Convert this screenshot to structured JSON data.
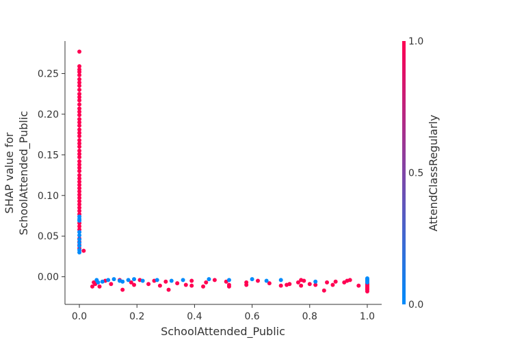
{
  "chart_data": {
    "type": "scatter",
    "title": "",
    "xlabel": "SchoolAttended_Public",
    "ylabel_lines": [
      "SHAP value for",
      "SchoolAttended_Public"
    ],
    "xlim": [
      -0.05,
      1.05
    ],
    "ylim": [
      -0.034,
      0.29
    ],
    "xticks": [
      0.0,
      0.2,
      0.4,
      0.6,
      0.8,
      1.0
    ],
    "xtick_labels": [
      "0.0",
      "0.2",
      "0.4",
      "0.6",
      "0.8",
      "1.0"
    ],
    "yticks": [
      0.0,
      0.05,
      0.1,
      0.15,
      0.2,
      0.25
    ],
    "ytick_labels": [
      "0.00",
      "0.05",
      "0.10",
      "0.15",
      "0.20",
      "0.25"
    ],
    "grid": false,
    "colorbar": {
      "label": "AttendClassRegularly",
      "range": [
        0.0,
        1.0
      ],
      "ticks": [
        0.0,
        0.5,
        1.0
      ],
      "tick_labels": [
        "0.0",
        "0.5",
        "1.0"
      ],
      "low_color": "#008bfb",
      "high_color": "#ff0052"
    },
    "colors": {
      "high": "#ff0052",
      "low": "#008bfb"
    },
    "series": [
      {
        "color_value": 1,
        "points": [
          [
            0,
            0.277
          ],
          [
            0,
            0.259
          ],
          [
            0,
            0.255
          ],
          [
            0,
            0.252
          ],
          [
            0,
            0.248
          ],
          [
            0,
            0.243
          ],
          [
            0,
            0.239
          ],
          [
            0,
            0.235
          ],
          [
            0,
            0.23
          ],
          [
            0,
            0.225
          ],
          [
            0,
            0.221
          ],
          [
            0,
            0.217
          ],
          [
            0,
            0.212
          ],
          [
            0,
            0.207
          ],
          [
            0,
            0.203
          ],
          [
            0,
            0.199
          ],
          [
            0,
            0.194
          ],
          [
            0,
            0.19
          ],
          [
            0,
            0.186
          ],
          [
            0,
            0.181
          ],
          [
            0,
            0.177
          ],
          [
            0,
            0.173
          ],
          [
            0,
            0.168
          ],
          [
            0,
            0.164
          ],
          [
            0,
            0.16
          ],
          [
            0,
            0.155
          ],
          [
            0,
            0.151
          ],
          [
            0,
            0.147
          ],
          [
            0,
            0.142
          ],
          [
            0,
            0.138
          ],
          [
            0,
            0.134
          ],
          [
            0,
            0.13
          ],
          [
            0,
            0.125
          ],
          [
            0,
            0.121
          ],
          [
            0,
            0.117
          ],
          [
            0,
            0.113
          ],
          [
            0,
            0.109
          ],
          [
            0,
            0.105
          ],
          [
            0,
            0.101
          ],
          [
            0,
            0.097
          ],
          [
            0,
            0.093
          ],
          [
            0,
            0.089
          ],
          [
            0,
            0.085
          ],
          [
            0,
            0.081
          ],
          [
            0,
            0.077
          ],
          [
            0,
            0.066
          ],
          [
            0,
            0.062
          ],
          [
            0,
            0.058
          ],
          [
            0,
            0.047
          ],
          [
            0,
            0.043
          ],
          [
            0,
            0.039
          ],
          [
            0,
            0.035
          ],
          [
            0.015,
            0.032
          ],
          [
            0.045,
            -0.012
          ],
          [
            0.05,
            -0.007
          ],
          [
            0.055,
            -0.009
          ],
          [
            0.07,
            -0.012
          ],
          [
            0.09,
            -0.005
          ],
          [
            0.11,
            -0.009
          ],
          [
            0.14,
            -0.004
          ],
          [
            0.15,
            -0.016
          ],
          [
            0.18,
            -0.007
          ],
          [
            0.19,
            -0.01
          ],
          [
            0.21,
            -0.004
          ],
          [
            0.24,
            -0.009
          ],
          [
            0.26,
            -0.005
          ],
          [
            0.28,
            -0.011
          ],
          [
            0.3,
            -0.006
          ],
          [
            0.31,
            -0.016
          ],
          [
            0.34,
            -0.008
          ],
          [
            0.37,
            -0.01
          ],
          [
            0.39,
            -0.005
          ],
          [
            0.39,
            -0.011
          ],
          [
            0.43,
            -0.012
          ],
          [
            0.44,
            -0.007
          ],
          [
            0.47,
            -0.004
          ],
          [
            0.51,
            -0.006
          ],
          [
            0.52,
            -0.01
          ],
          [
            0.52,
            -0.012
          ],
          [
            0.58,
            -0.01
          ],
          [
            0.58,
            -0.007
          ],
          [
            0.62,
            -0.005
          ],
          [
            0.66,
            -0.008
          ],
          [
            0.7,
            -0.011
          ],
          [
            0.72,
            -0.01
          ],
          [
            0.73,
            -0.009
          ],
          [
            0.76,
            -0.007
          ],
          [
            0.77,
            -0.004
          ],
          [
            0.77,
            -0.011
          ],
          [
            0.78,
            -0.005
          ],
          [
            0.8,
            -0.009
          ],
          [
            0.82,
            -0.01
          ],
          [
            0.85,
            -0.017
          ],
          [
            0.86,
            -0.007
          ],
          [
            0.88,
            -0.01
          ],
          [
            0.89,
            -0.006
          ],
          [
            0.92,
            -0.007
          ],
          [
            0.93,
            -0.005
          ],
          [
            0.94,
            -0.004
          ],
          [
            0.97,
            -0.011
          ],
          [
            1,
            -0.006
          ],
          [
            1,
            -0.008
          ],
          [
            1,
            -0.01
          ],
          [
            1,
            -0.012
          ],
          [
            1,
            -0.014
          ],
          [
            1,
            -0.016
          ],
          [
            1,
            -0.018
          ],
          [
            1,
            -0.004
          ],
          [
            1,
            -0.011
          ],
          [
            1,
            -0.015
          ],
          [
            1,
            -0.009
          ],
          [
            1,
            -0.013
          ]
        ]
      },
      {
        "color_value": 0,
        "points": [
          [
            0,
            0.074
          ],
          [
            0,
            0.071
          ],
          [
            0,
            0.069
          ],
          [
            0,
            0.055
          ],
          [
            0,
            0.051
          ],
          [
            0,
            0.046
          ],
          [
            0,
            0.042
          ],
          [
            0,
            0.038
          ],
          [
            0,
            0.033
          ],
          [
            0,
            0.03
          ],
          [
            0.06,
            -0.004
          ],
          [
            0.065,
            -0.007
          ],
          [
            0.08,
            -0.006
          ],
          [
            0.1,
            -0.004
          ],
          [
            0.12,
            -0.003
          ],
          [
            0.14,
            -0.005
          ],
          [
            0.15,
            -0.006
          ],
          [
            0.17,
            -0.004
          ],
          [
            0.19,
            -0.003
          ],
          [
            0.22,
            -0.005
          ],
          [
            0.27,
            -0.004
          ],
          [
            0.32,
            -0.005
          ],
          [
            0.36,
            -0.004
          ],
          [
            0.45,
            -0.003
          ],
          [
            0.52,
            -0.004
          ],
          [
            0.6,
            -0.003
          ],
          [
            0.65,
            -0.005
          ],
          [
            0.7,
            -0.004
          ],
          [
            0.82,
            -0.006
          ],
          [
            1,
            -0.002
          ],
          [
            1,
            -0.003
          ],
          [
            1,
            -0.005
          ],
          [
            1,
            -0.007
          ]
        ]
      }
    ]
  }
}
